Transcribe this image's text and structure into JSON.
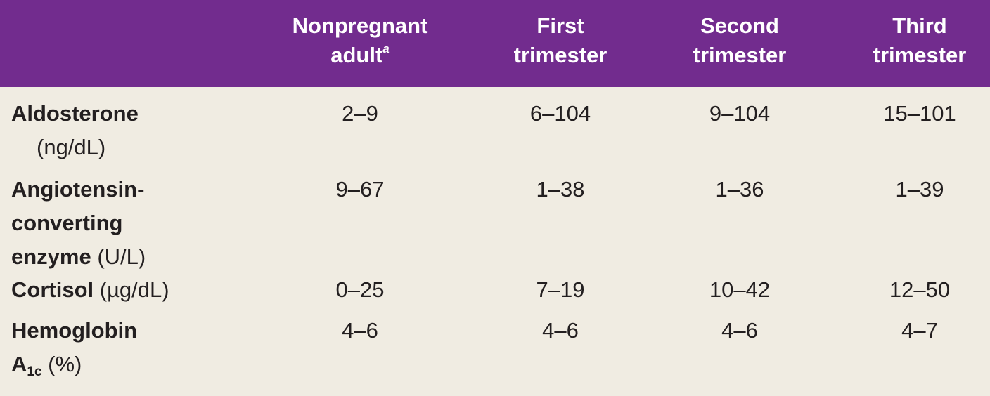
{
  "table": {
    "header": [
      "Nonpregnant adult",
      "First trimester",
      "Second trimester",
      "Third trimester"
    ],
    "header_note": "a",
    "rows": [
      {
        "name": "Aldosterone",
        "unit": "(ng/dL)",
        "values": [
          "2–9",
          "6–104",
          "9–104",
          "15–101"
        ]
      },
      {
        "name": "Angiotensin-converting enzyme",
        "unit": "(U/L)",
        "values": [
          "9–67",
          "1–38",
          "1–36",
          "1–39"
        ]
      },
      {
        "name": "Cortisol",
        "unit": "(µg/dL)",
        "values": [
          "0–25",
          "7–19",
          "10–42",
          "12–50"
        ]
      },
      {
        "name": "Hemoglobin",
        "symbol": "A",
        "subscript": "1c",
        "unit": "(%)",
        "values": [
          "4–6",
          "4–6",
          "4–6",
          "4–7"
        ]
      }
    ]
  }
}
